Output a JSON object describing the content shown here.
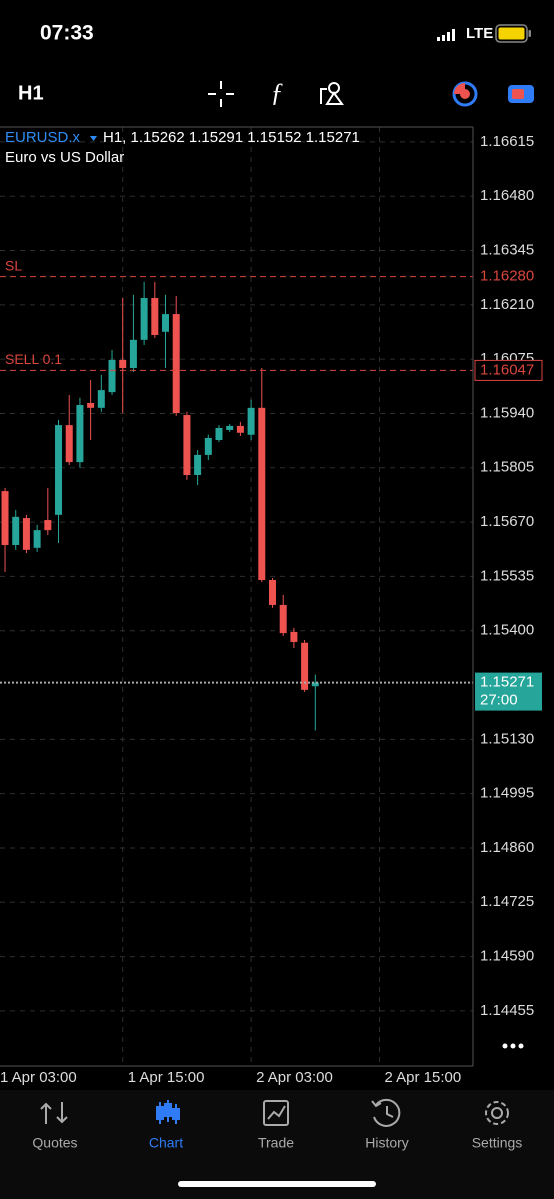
{
  "status_bar": {
    "time": "07:33",
    "network": "LTE"
  },
  "toolbar": {
    "timeframe": "H1"
  },
  "chart_data": {
    "type": "candlestick",
    "symbol": "EURUSD.x",
    "info": "H1, 1.15262 1.15291 1.15152 1.15271",
    "subtitle": "Euro vs US Dollar",
    "x": [
      0,
      1,
      2,
      3,
      4,
      5,
      6,
      7,
      8,
      9,
      10,
      11,
      12,
      13,
      14,
      15,
      16,
      17,
      18,
      19,
      20,
      21,
      22,
      23,
      24,
      25,
      26,
      27,
      28,
      29
    ],
    "open": [
      1.15747,
      1.15613,
      1.1568,
      1.15606,
      1.15675,
      1.15688,
      1.15911,
      1.15819,
      1.15966,
      1.15954,
      1.15993,
      1.16073,
      1.16053,
      1.16123,
      1.16227,
      1.16143,
      1.16187,
      1.15936,
      1.15787,
      1.15837,
      1.15874,
      1.15899,
      1.15909,
      1.15887,
      1.15954,
      1.15526,
      1.15464,
      1.15397,
      1.1537,
      1.15262
    ],
    "high": [
      1.15755,
      1.157,
      1.15688,
      1.15663,
      1.15755,
      1.15924,
      1.15986,
      1.15979,
      1.16023,
      1.16036,
      1.16098,
      1.16227,
      1.16235,
      1.16267,
      1.16267,
      1.16235,
      1.16232,
      1.15944,
      1.15849,
      1.15887,
      1.15911,
      1.15914,
      1.15919,
      1.15974,
      1.16053,
      1.15531,
      1.15489,
      1.15407,
      1.15377,
      1.15291
    ],
    "low": [
      1.15546,
      1.15601,
      1.15593,
      1.15596,
      1.15638,
      1.15618,
      1.15812,
      1.15805,
      1.15874,
      1.15944,
      1.15986,
      1.15941,
      1.16043,
      1.1611,
      1.16128,
      1.16053,
      1.15934,
      1.15775,
      1.15762,
      1.15824,
      1.15869,
      1.15894,
      1.15884,
      1.15874,
      1.15521,
      1.15457,
      1.15387,
      1.15357,
      1.15248,
      1.15152
    ],
    "close": [
      1.15613,
      1.15683,
      1.15601,
      1.1565,
      1.1565,
      1.15911,
      1.15819,
      1.15961,
      1.15954,
      1.15998,
      1.16073,
      1.16053,
      1.16123,
      1.16227,
      1.16135,
      1.16187,
      1.15941,
      1.15787,
      1.15837,
      1.15879,
      1.15904,
      1.15909,
      1.15892,
      1.15954,
      1.15526,
      1.15464,
      1.15394,
      1.15372,
      1.15253,
      1.15271
    ],
    "up_color": "#26a69a",
    "down_color": "#ef5350",
    "ylim": [
      1.14318,
      1.16652
    ],
    "yticks": [
      1.16615,
      {
        "value": 1.1648,
        "label": "1.16480"
      },
      1.16345,
      {
        "value": 1.1621,
        "label": "1.16210"
      },
      1.16075,
      {
        "value": 1.1594,
        "label": "1.15940"
      },
      1.15805,
      {
        "value": 1.1567,
        "label": "1.15670"
      },
      1.15535,
      {
        "value": 1.154,
        "label": "1.15400"
      },
      {
        "value": 1.1513,
        "label": "1.15130"
      },
      1.14995,
      {
        "value": 1.1486,
        "label": "1.14860"
      },
      1.14725,
      {
        "value": 1.1459,
        "label": "1.14590"
      },
      1.14455
    ],
    "xlim": [
      -0.47,
      43.74
    ],
    "xticks": [
      {
        "value": -1,
        "label": "1 Apr 03:00"
      },
      {
        "value": 11,
        "label": "1 Apr 15:00"
      },
      {
        "value": 23,
        "label": "2 Apr 03:00"
      },
      {
        "value": 35,
        "label": "2 Apr 15:00"
      }
    ],
    "grid": true,
    "levels": [
      {
        "name": "SL",
        "value": 1.1628,
        "label": "1.16280",
        "color": "#d9463e"
      },
      {
        "name": "SELL 0.1",
        "value": 1.16047,
        "label": "1.16047",
        "color": "#d9463e"
      },
      {
        "value": 1.15271,
        "label": "1.15271",
        "timer": "27:00",
        "color": "#26a69a"
      }
    ]
  },
  "nav": [
    "Quotes",
    "Chart",
    "Trade",
    "History",
    "Settings"
  ]
}
